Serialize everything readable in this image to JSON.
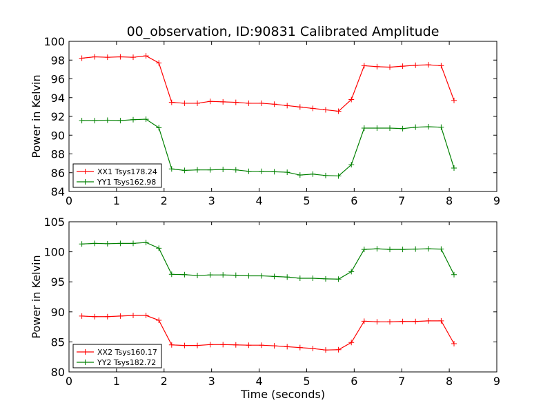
{
  "title": "00_observation, ID:90831 Calibrated Amplitude",
  "chart_data": [
    {
      "type": "line",
      "title": "00_observation, ID:90831 Calibrated Amplitude",
      "xlabel": "",
      "ylabel": "Power in Kelvin",
      "xlim": [
        0,
        9
      ],
      "ylim": [
        84,
        100
      ],
      "xticks": [
        "0",
        "1",
        "2",
        "3",
        "4",
        "5",
        "6",
        "7",
        "8",
        "9"
      ],
      "yticks": [
        "84",
        "86",
        "88",
        "90",
        "92",
        "94",
        "96",
        "98",
        "100"
      ],
      "grid": false,
      "legend_position": "lower-left",
      "x": [
        0.27,
        0.54,
        0.81,
        1.08,
        1.35,
        1.62,
        1.89,
        2.16,
        2.43,
        2.7,
        2.97,
        3.24,
        3.51,
        3.78,
        4.05,
        4.32,
        4.59,
        4.86,
        5.13,
        5.4,
        5.67,
        5.94,
        6.21,
        6.48,
        6.75,
        7.02,
        7.29,
        7.56,
        7.83,
        8.1
      ],
      "series": [
        {
          "name": "XX1 Tsys178.24",
          "color": "#ff0000",
          "values": [
            98.2,
            98.35,
            98.3,
            98.35,
            98.3,
            98.45,
            97.7,
            93.5,
            93.4,
            93.4,
            93.6,
            93.55,
            93.5,
            93.4,
            93.4,
            93.3,
            93.15,
            93.0,
            92.85,
            92.7,
            92.55,
            93.8,
            97.4,
            97.3,
            97.25,
            97.35,
            97.45,
            97.5,
            97.4,
            93.7
          ]
        },
        {
          "name": "YY1 Tsys162.98",
          "color": "#008000",
          "values": [
            91.55,
            91.55,
            91.6,
            91.55,
            91.65,
            91.7,
            90.8,
            86.4,
            86.25,
            86.3,
            86.3,
            86.35,
            86.3,
            86.15,
            86.15,
            86.1,
            86.05,
            85.75,
            85.85,
            85.7,
            85.65,
            86.85,
            90.75,
            90.75,
            90.75,
            90.7,
            90.85,
            90.9,
            90.85,
            86.5
          ]
        }
      ]
    },
    {
      "type": "line",
      "title": "",
      "xlabel": "Time (seconds)",
      "ylabel": "Power in Kelvin",
      "xlim": [
        0,
        9
      ],
      "ylim": [
        80,
        105
      ],
      "xticks": [
        "0",
        "1",
        "2",
        "3",
        "4",
        "5",
        "6",
        "7",
        "8",
        "9"
      ],
      "yticks": [
        "80",
        "85",
        "90",
        "95",
        "100",
        "105"
      ],
      "grid": false,
      "legend_position": "lower-left",
      "x": [
        0.27,
        0.54,
        0.81,
        1.08,
        1.35,
        1.62,
        1.89,
        2.16,
        2.43,
        2.7,
        2.97,
        3.24,
        3.51,
        3.78,
        4.05,
        4.32,
        4.59,
        4.86,
        5.13,
        5.4,
        5.67,
        5.94,
        6.21,
        6.48,
        6.75,
        7.02,
        7.29,
        7.56,
        7.83,
        8.1
      ],
      "series": [
        {
          "name": "XX2 Tsys160.17",
          "color": "#ff0000",
          "values": [
            89.3,
            89.2,
            89.2,
            89.3,
            89.4,
            89.4,
            88.6,
            84.5,
            84.4,
            84.4,
            84.55,
            84.55,
            84.5,
            84.45,
            84.45,
            84.35,
            84.2,
            84.05,
            83.9,
            83.65,
            83.7,
            84.9,
            88.45,
            88.35,
            88.35,
            88.4,
            88.4,
            88.5,
            88.5,
            84.7
          ]
        },
        {
          "name": "YY2 Tsys182.72",
          "color": "#008000",
          "values": [
            101.3,
            101.4,
            101.35,
            101.4,
            101.4,
            101.55,
            100.6,
            96.25,
            96.2,
            96.05,
            96.15,
            96.15,
            96.1,
            96.0,
            96.0,
            95.9,
            95.8,
            95.6,
            95.6,
            95.5,
            95.45,
            96.7,
            100.4,
            100.5,
            100.4,
            100.4,
            100.45,
            100.5,
            100.45,
            96.2
          ]
        }
      ]
    }
  ]
}
